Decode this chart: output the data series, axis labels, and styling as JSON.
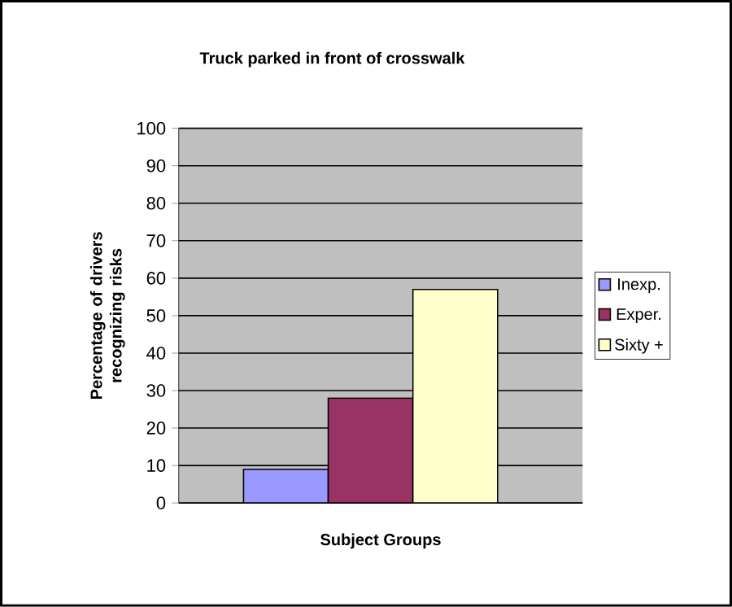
{
  "chart_data": {
    "type": "bar",
    "title": "Truck parked in front of crosswalk",
    "xlabel": "Subject Groups",
    "ylabel": "Percentage of drivers recognizing risks",
    "categories": [
      null
    ],
    "series": [
      {
        "name": "Inexp.",
        "color": "#9999ff",
        "values": [
          9
        ]
      },
      {
        "name": "Exper.",
        "color": "#993366",
        "values": [
          28
        ]
      },
      {
        "name": "Sixty +",
        "color": "#ffffcc",
        "values": [
          57
        ]
      }
    ],
    "ylim": [
      0,
      100
    ],
    "yticks": [
      0,
      10,
      20,
      30,
      40,
      50,
      60,
      70,
      80,
      90,
      100
    ],
    "grid": "y",
    "legend": "right"
  }
}
